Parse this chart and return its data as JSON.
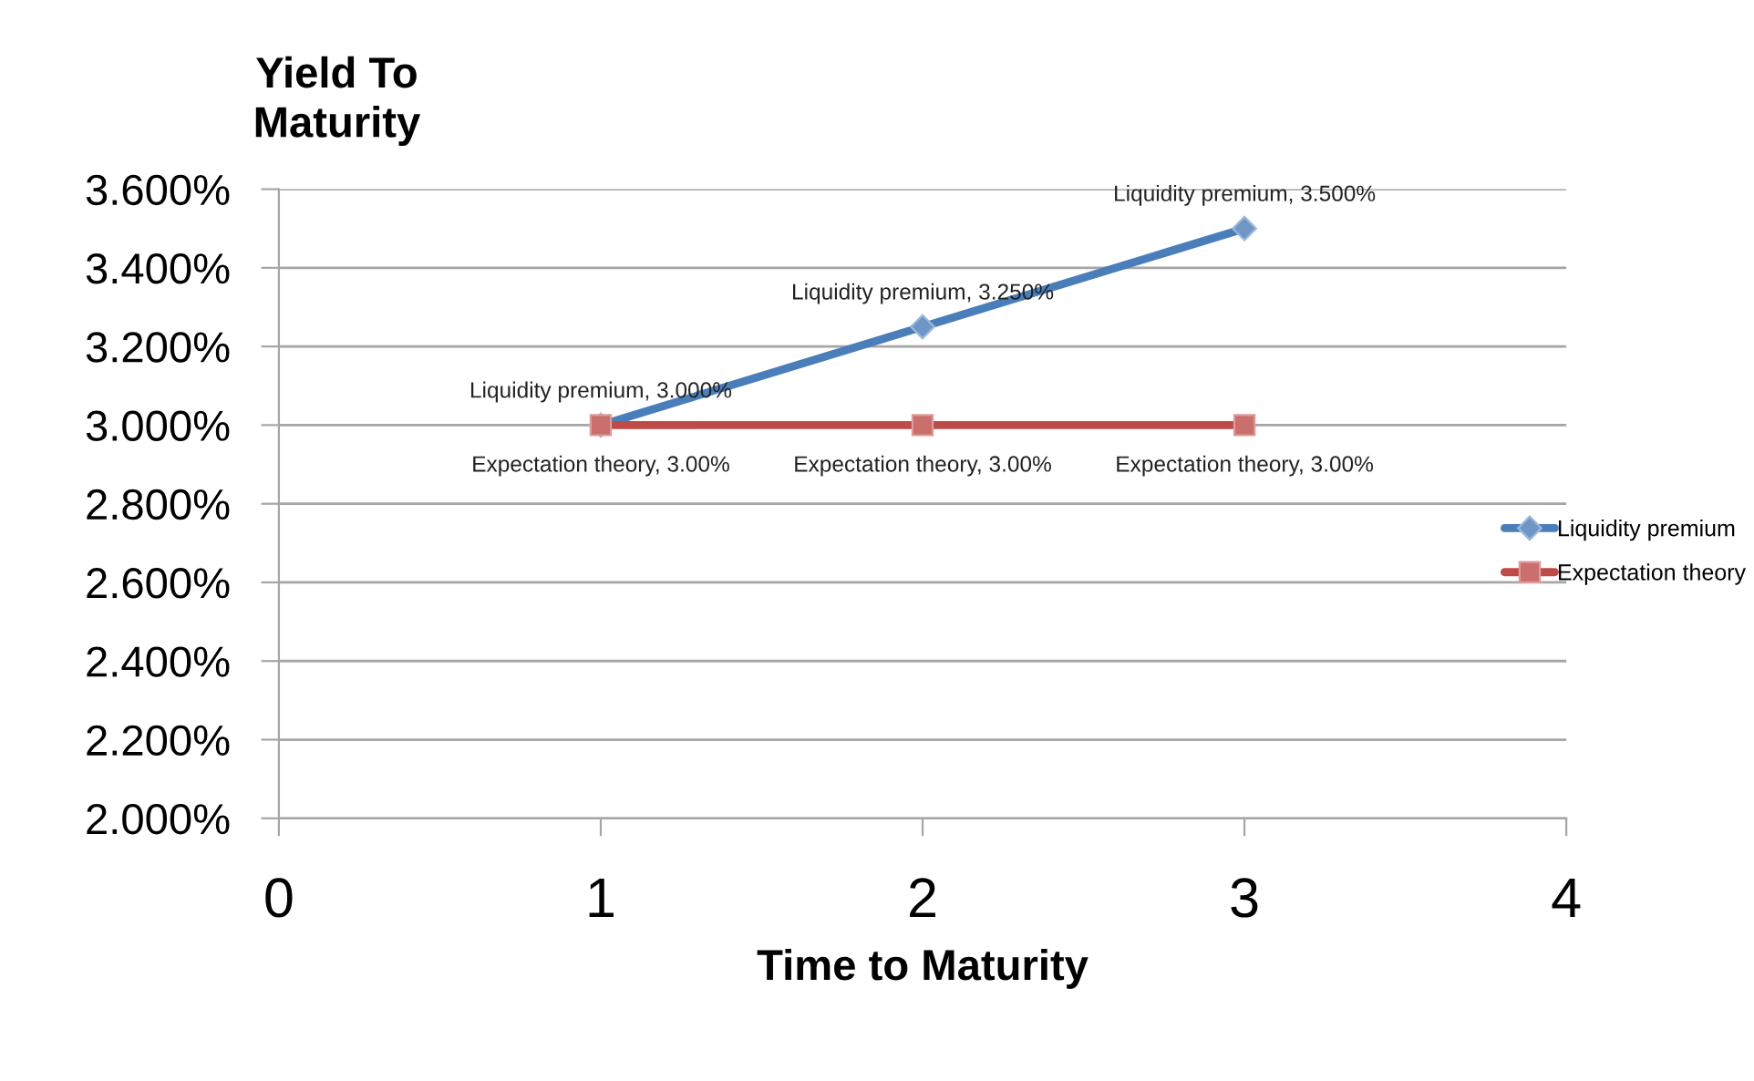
{
  "chart_data": {
    "type": "line",
    "xlabel": "Time to Maturity",
    "ylabel": "Yield To\nMaturity",
    "x": [
      1,
      2,
      3
    ],
    "series": [
      {
        "name": "Liquidity premium",
        "color": "#4a7ebb",
        "marker": "diamond",
        "values": [
          3.0,
          3.25,
          3.5
        ],
        "value_labels": [
          "Liquidity premium, 3.000%",
          "Liquidity premium, 3.250%",
          "Liquidity premium, 3.500%"
        ]
      },
      {
        "name": "Expectation theory",
        "color": "#be4b48",
        "marker": "square",
        "values": [
          3.0,
          3.0,
          3.0
        ],
        "value_labels": [
          "Expectation theory, 3.00%",
          "Expectation theory, 3.00%",
          "Expectation theory, 3.00%"
        ]
      }
    ],
    "xlim": [
      0,
      4
    ],
    "xticks": [
      0,
      1,
      2,
      3,
      4
    ],
    "ylim": [
      2.0,
      3.6
    ],
    "yticks": [
      {
        "value": 2.0,
        "label": "2.000%"
      },
      {
        "value": 2.2,
        "label": "2.200%"
      },
      {
        "value": 2.4,
        "label": "2.400%"
      },
      {
        "value": 2.6,
        "label": "2.600%"
      },
      {
        "value": 2.8,
        "label": "2.800%"
      },
      {
        "value": 3.0,
        "label": "3.000%"
      },
      {
        "value": 3.2,
        "label": "3.200%"
      },
      {
        "value": 3.4,
        "label": "3.400%"
      },
      {
        "value": 3.6,
        "label": "3.600%"
      }
    ],
    "grid": "y",
    "legend": "right",
    "line_style": "solid"
  }
}
